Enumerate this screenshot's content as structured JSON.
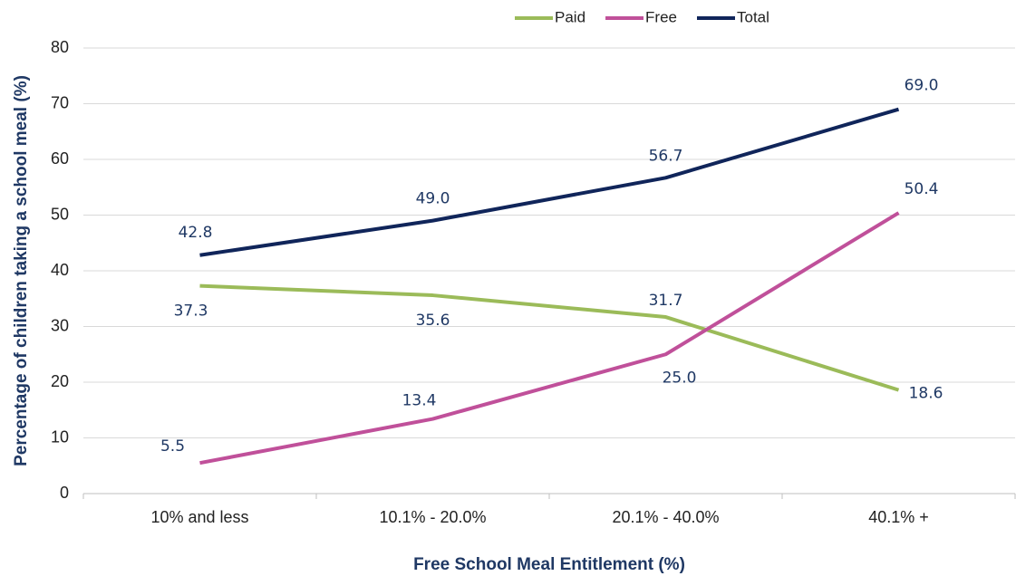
{
  "chart_data": {
    "type": "line",
    "x_label": "Free School Meal Entitlement (%)",
    "y_label": "Percentage of children taking a school meal (%)",
    "categories": [
      "10% and less",
      "10.1% - 20.0%",
      "20.1% - 40.0%",
      "40.1% +"
    ],
    "series": [
      {
        "name": "Paid",
        "color": "#9bbb59",
        "values": [
          37.3,
          35.6,
          31.7,
          18.6
        ],
        "value_labels": [
          "37.3",
          "35.6",
          "31.7",
          "18.6"
        ]
      },
      {
        "name": "Free",
        "color": "#c0509a",
        "values": [
          5.5,
          13.4,
          25.0,
          50.4
        ],
        "value_labels": [
          "5.5",
          "13.4",
          "25.0",
          "50.4"
        ]
      },
      {
        "name": "Total",
        "color": "#10255a",
        "values": [
          42.8,
          49.0,
          56.7,
          69.0
        ],
        "value_labels": [
          "42.8",
          "49.0",
          "56.7",
          "69.0"
        ]
      }
    ],
    "ylim": [
      0,
      80
    ],
    "yticks": [
      0,
      10,
      20,
      30,
      40,
      50,
      60,
      70,
      80
    ],
    "grid": true,
    "legend": "top"
  }
}
